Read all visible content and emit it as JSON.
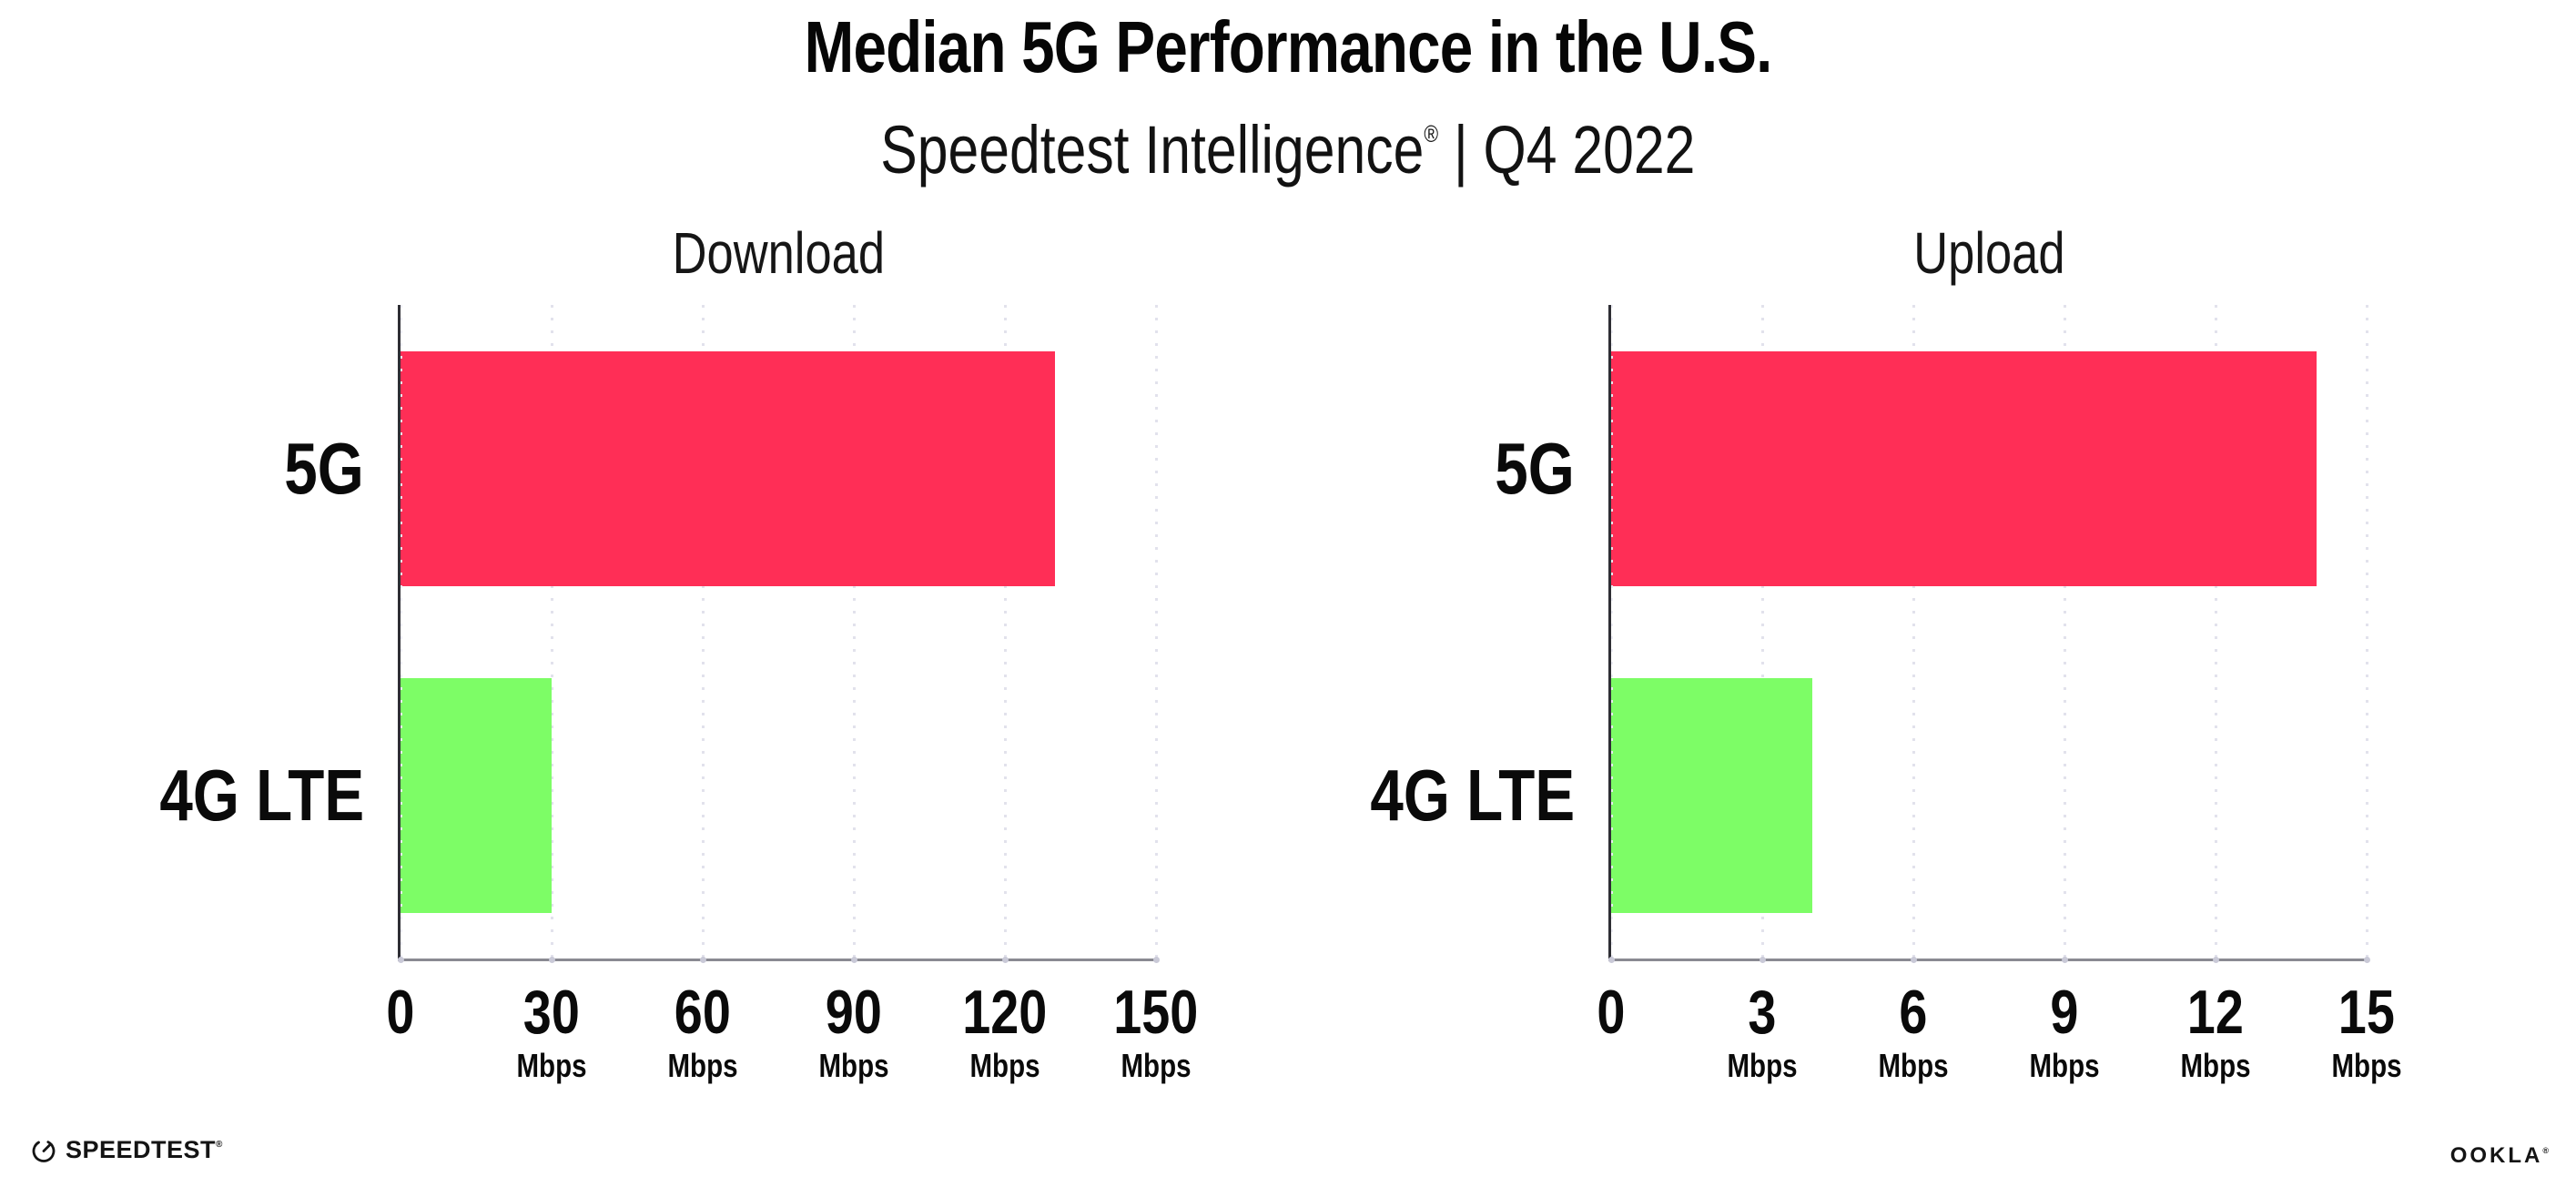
{
  "header": {
    "title": "Median 5G Performance in the U.S.",
    "subtitle_brand": "Speedtest Intelligence",
    "subtitle_reg": "®",
    "subtitle_rest": " | Q4 2022"
  },
  "chart_data": [
    {
      "type": "bar",
      "orientation": "horizontal",
      "title": "Download",
      "categories": [
        "5G",
        "4G LTE"
      ],
      "values": [
        130,
        30
      ],
      "unit": "Mbps",
      "xlim": [
        0,
        150
      ],
      "xticks": [
        0,
        30,
        60,
        90,
        120,
        150
      ],
      "bar_colors": [
        "#FF2E56",
        "#7DFD66"
      ],
      "grid": "dotted vertical gridline at each tick",
      "legend": "none"
    },
    {
      "type": "bar",
      "orientation": "horizontal",
      "title": "Upload",
      "categories": [
        "5G",
        "4G LTE"
      ],
      "values": [
        14,
        4
      ],
      "unit": "Mbps",
      "xlim": [
        0,
        15
      ],
      "xticks": [
        0,
        3,
        6,
        9,
        12,
        15
      ],
      "bar_colors": [
        "#FF2E56",
        "#7DFD66"
      ],
      "grid": "dotted vertical gridline at each tick",
      "legend": "none"
    }
  ],
  "colors": {
    "bar_5g": "#FF2E56",
    "bar_4g_lte": "#7DFD66",
    "gridline": "#E2E2EC",
    "x_axis": "#8A8A92",
    "y_axis": "#2E2E34",
    "text": "#0B0B0B"
  },
  "footer": {
    "speedtest_wordmark": "SPEEDTEST",
    "speedtest_mark": "®",
    "ookla_wordmark": "OOKLA",
    "ookla_mark": "®"
  }
}
